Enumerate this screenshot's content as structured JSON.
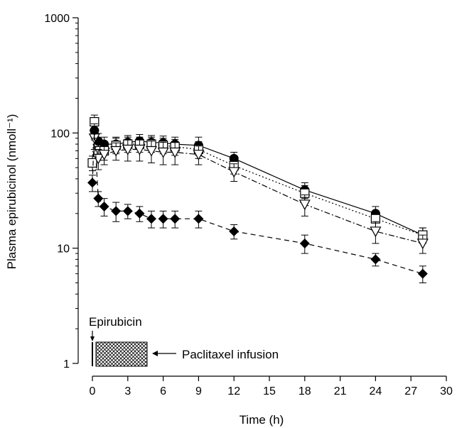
{
  "chart_data": {
    "type": "line",
    "xlabel": "Time (h)",
    "ylabel": "Plasma epirubicinol (nmoll⁻¹)",
    "xlim": [
      0,
      30
    ],
    "ylim": [
      1,
      1000
    ],
    "y_scale": "log",
    "x_ticks": [
      0,
      3,
      6,
      9,
      12,
      15,
      18,
      21,
      24,
      27,
      30
    ],
    "y_ticks": [
      1,
      10,
      100,
      1000
    ],
    "y_tick_labels": [
      "1",
      "10",
      "100",
      "1000"
    ],
    "grid": false,
    "annotations": [
      {
        "text": "Epirubicin",
        "kind": "arrow-down",
        "at_x": 0.17
      },
      {
        "text": "Paclitaxel infusion",
        "kind": "hatched-bar",
        "x_range": [
          0.5,
          4.6
        ],
        "arrow": "left"
      }
    ],
    "series": [
      {
        "marker": "filled-circle",
        "line": "solid",
        "x": [
          0.17,
          0.5,
          1,
          2,
          3,
          4,
          5,
          6,
          7,
          9,
          12,
          18,
          24,
          28
        ],
        "y": [
          105,
          85,
          80,
          80,
          83,
          85,
          83,
          82,
          80,
          78,
          60,
          32,
          20,
          13
        ],
        "err": [
          18,
          14,
          12,
          12,
          12,
          12,
          12,
          12,
          12,
          14,
          8,
          5,
          3,
          2
        ]
      },
      {
        "marker": "open-square",
        "line": "dotted",
        "x": [
          0,
          0.17,
          0.5,
          1,
          2,
          3,
          4,
          5,
          6,
          7,
          9,
          12,
          18,
          24,
          28
        ],
        "y": [
          55,
          125,
          70,
          70,
          78,
          80,
          80,
          80,
          78,
          76,
          72,
          52,
          30,
          18,
          13
        ],
        "err": [
          8,
          18,
          12,
          12,
          12,
          12,
          12,
          12,
          12,
          12,
          12,
          8,
          5,
          3,
          2
        ]
      },
      {
        "marker": "open-triangle-down",
        "line": "dash-dot",
        "x": [
          0.17,
          0.5,
          1,
          2,
          3,
          4,
          5,
          6,
          7,
          9,
          12,
          18,
          24,
          28
        ],
        "y": [
          90,
          60,
          65,
          70,
          72,
          72,
          70,
          68,
          68,
          65,
          46,
          24,
          14,
          11
        ],
        "err": [
          18,
          12,
          12,
          12,
          15,
          15,
          15,
          15,
          15,
          12,
          8,
          5,
          3,
          2
        ]
      },
      {
        "marker": "filled-diamond",
        "line": "dashed",
        "x": [
          0,
          0.17,
          0.5,
          1,
          2,
          3,
          4,
          5,
          6,
          7,
          9,
          12,
          18,
          24,
          28
        ],
        "y": [
          37,
          105,
          27,
          23,
          21,
          21,
          20,
          18,
          18,
          18,
          18,
          14,
          11,
          8,
          6
        ],
        "err": [
          6,
          15,
          4,
          4,
          4,
          3,
          3,
          3,
          3,
          3,
          3,
          2,
          2,
          1,
          1
        ]
      }
    ]
  }
}
